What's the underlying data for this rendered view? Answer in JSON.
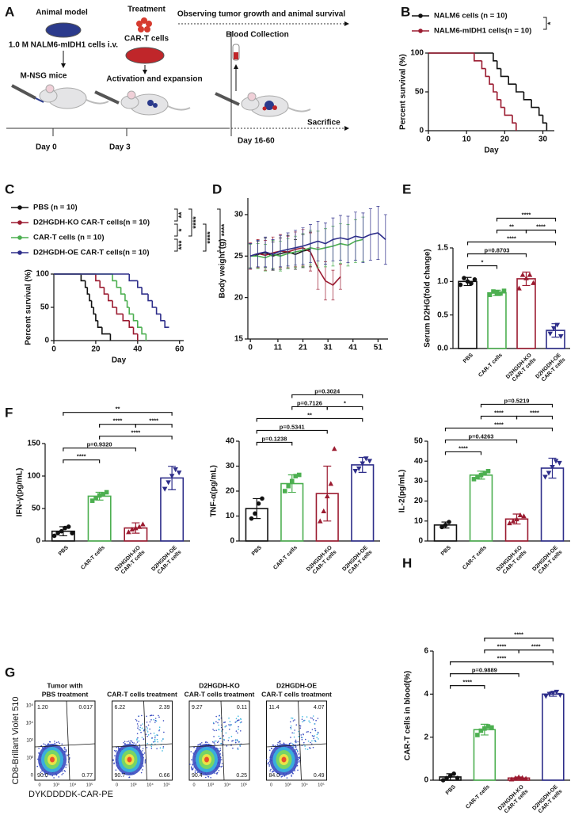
{
  "panel_labels": [
    "A",
    "B",
    "C",
    "D",
    "E",
    "F",
    "G",
    "H"
  ],
  "schematic": {
    "animal_model": "Animal model",
    "cells": "1.0 M NALM6-mIDH1 cells i.v.",
    "mice": "M-NSG mice",
    "treatment": "Treatment",
    "car_t": "CAR-T cells",
    "activation": "Activation and expansion",
    "observing": "Observing tumor growth and animal survival",
    "blood": "Blood Collection",
    "sacrifice": "Sacrifice",
    "days": [
      "Day 0",
      "Day 3",
      "Day 16-60"
    ]
  },
  "chart_data": [
    {
      "type": "step",
      "ylabel": "Percent survival (%)",
      "xlabel": "Day",
      "xlim": [
        0,
        33
      ],
      "xticks": [
        0,
        10,
        20,
        30
      ],
      "ylim": [
        0,
        100
      ],
      "yticks": [
        0,
        50,
        100
      ],
      "series": [
        {
          "name": "NALM6 cells (n = 10)",
          "color": "#111111",
          "x": [
            0,
            17,
            18,
            19,
            21,
            23,
            25,
            27,
            29,
            30,
            31
          ],
          "values": [
            100,
            90,
            80,
            70,
            60,
            50,
            40,
            30,
            20,
            10,
            0
          ]
        },
        {
          "name": "NALM6-mIDH1 cells(n = 10)",
          "color": "#9b1b30",
          "x": [
            0,
            12,
            14,
            15,
            16,
            17,
            18,
            19,
            20,
            22,
            23
          ],
          "values": [
            100,
            90,
            80,
            70,
            60,
            50,
            40,
            30,
            20,
            10,
            0
          ]
        }
      ],
      "comparisons": [
        {
          "pair": [
            0,
            1
          ],
          "label": "*"
        }
      ]
    },
    {
      "type": "step",
      "ylabel": "Percent survival (%)",
      "xlabel": "Day",
      "xlim": [
        0,
        62
      ],
      "xticks": [
        0,
        20,
        40,
        60
      ],
      "ylim": [
        0,
        100
      ],
      "yticks": [
        0,
        50,
        100
      ],
      "series": [
        {
          "name": "PBS (n = 10)",
          "color": "#111111",
          "x": [
            0,
            13,
            15,
            16,
            17,
            18,
            19,
            20,
            21,
            23,
            27
          ],
          "values": [
            100,
            90,
            80,
            70,
            60,
            50,
            40,
            30,
            20,
            10,
            0
          ]
        },
        {
          "name": "D2HGDH-KO CAR-T cells(n = 10)",
          "color": "#9b1b30",
          "x": [
            0,
            20,
            22,
            24,
            26,
            28,
            30,
            33,
            36,
            38,
            40
          ],
          "values": [
            100,
            90,
            80,
            70,
            60,
            50,
            40,
            30,
            20,
            10,
            0
          ]
        },
        {
          "name": "CAR-T cells (n = 10)",
          "color": "#4caf50",
          "x": [
            0,
            28,
            30,
            32,
            34,
            35,
            36,
            38,
            40,
            42,
            44
          ],
          "values": [
            100,
            90,
            80,
            70,
            60,
            50,
            40,
            30,
            20,
            10,
            0
          ]
        },
        {
          "name": "D2HGDH-OE CAR-T cells(n = 10)",
          "color": "#2e2e8a",
          "x": [
            0,
            36,
            40,
            42,
            45,
            47,
            49,
            51,
            53,
            55
          ],
          "values": [
            100,
            90,
            80,
            70,
            60,
            50,
            40,
            30,
            20,
            20
          ]
        }
      ],
      "comparisons": [
        {
          "pair": [
            0,
            1
          ],
          "label": "**"
        },
        {
          "pair": [
            1,
            2
          ],
          "label": "*"
        },
        {
          "pair": [
            2,
            3
          ],
          "label": "***"
        },
        {
          "pair": [
            0,
            2
          ],
          "label": "****"
        },
        {
          "pair": [
            1,
            3
          ],
          "label": "****"
        },
        {
          "pair": [
            0,
            3
          ],
          "label": "****"
        }
      ]
    },
    {
      "type": "line",
      "ylabel": "Body weight (g)",
      "x": [
        0,
        3,
        6,
        9,
        12,
        15,
        18,
        21,
        24,
        27,
        30,
        33,
        36,
        39,
        42,
        45,
        48,
        51,
        54
      ],
      "xlim": [
        -1,
        55
      ],
      "xticks": [
        0,
        11,
        21,
        31,
        41,
        51
      ],
      "ylim": [
        15,
        32
      ],
      "yticks": [
        15,
        20,
        25,
        30
      ],
      "series": [
        {
          "name": "PBS",
          "color": "#111111",
          "values": [
            25,
            25.2,
            25.4,
            25,
            25.3,
            25.5,
            25.2,
            25.6,
            25.8,
            null,
            null,
            null,
            null,
            null,
            null,
            null,
            null,
            null,
            null
          ],
          "errors": [
            1.5,
            1.6,
            1.8,
            1.7,
            1.9,
            2,
            1.8,
            2,
            2.1,
            null,
            null,
            null,
            null,
            null,
            null,
            null,
            null,
            null,
            null
          ]
        },
        {
          "name": "D2HGDH-KO CAR-T cells",
          "color": "#9b1b30",
          "values": [
            25,
            25.3,
            25.1,
            25.4,
            25.6,
            25.5,
            25.8,
            26,
            25.5,
            23.5,
            22,
            21.5,
            22.5,
            null,
            null,
            null,
            null,
            null,
            null
          ],
          "errors": [
            1.6,
            1.7,
            1.8,
            1.9,
            2,
            1.9,
            2.1,
            2.2,
            2.3,
            2.5,
            2.3,
            1.8,
            1.5,
            null,
            null,
            null,
            null,
            null,
            null
          ]
        },
        {
          "name": "CAR-T cells",
          "color": "#4caf50",
          "values": [
            25,
            25,
            24.8,
            25.2,
            25,
            25.3,
            25.5,
            25.7,
            26,
            25.8,
            26,
            26.2,
            26.5,
            26.3,
            26.8,
            27,
            null,
            null,
            null
          ],
          "errors": [
            1.4,
            1.5,
            1.6,
            1.7,
            1.8,
            1.8,
            1.9,
            2,
            2.1,
            2.2,
            2.3,
            2.4,
            2.4,
            2.5,
            2.6,
            2.7,
            null,
            null,
            null
          ]
        },
        {
          "name": "D2HGDH-OE CAR-T cells",
          "color": "#2e2e8a",
          "values": [
            25,
            25.3,
            25.5,
            25.2,
            25.6,
            25.8,
            26,
            26.2,
            26.5,
            26.8,
            26.5,
            27,
            27.2,
            27,
            27.4,
            27.2,
            27.6,
            27.8,
            27
          ],
          "errors": [
            1.5,
            1.6,
            1.8,
            1.8,
            1.9,
            2,
            2.1,
            2.2,
            2.3,
            2.4,
            2.5,
            2.6,
            2.7,
            2.8,
            2.9,
            3,
            3.1,
            3.2,
            3
          ]
        }
      ]
    },
    {
      "type": "bar",
      "ylabel": "Serum D2HG(fold change)",
      "categories": [
        "PBS",
        "CAR-T cells",
        "D2HGDH-KO CAR-T cells",
        "D2HGDH-OE CAR-T cells"
      ],
      "values": [
        1.0,
        0.83,
        1.04,
        0.27
      ],
      "errors": [
        0.06,
        0.04,
        0.1,
        0.1
      ],
      "points": [
        [
          0.95,
          1.05,
          1.0,
          0.97,
          1.03
        ],
        [
          0.8,
          0.85,
          0.83,
          0.82,
          0.86
        ],
        [
          0.9,
          1.1,
          1.05,
          1.1,
          0.98
        ],
        [
          0.22,
          0.3,
          0.35,
          0.18
        ]
      ],
      "colors": [
        "#111111",
        "#4caf50",
        "#9b1b30",
        "#2e2e8a"
      ],
      "markers": [
        "circle",
        "square",
        "triangle",
        "triangle-down"
      ],
      "ylim": [
        0,
        1.5
      ],
      "yticks": [
        {
          "value": 0,
          "label": "0.0"
        },
        0.5,
        {
          "value": 1,
          "label": "1.0"
        },
        1.5
      ],
      "comparisons": [
        {
          "pair": [
            0,
            1
          ],
          "label": "*"
        },
        {
          "pair": [
            0,
            2
          ],
          "label": "p=0.8703"
        },
        {
          "pair": [
            0,
            3
          ],
          "label": "****"
        },
        {
          "pair": [
            1,
            2
          ],
          "label": "**"
        },
        {
          "pair": [
            2,
            3
          ],
          "label": "****"
        },
        {
          "pair": [
            1,
            3
          ],
          "label": "****"
        }
      ]
    },
    {
      "type": "bar",
      "ylabel": "IFN-γ(pg/mL)",
      "categories": [
        "PBS",
        "CAR-T cells",
        "D2HGDH-KO CAR-T cells",
        "D2HGDH-OE CAR-T cells"
      ],
      "values": [
        15,
        69,
        20,
        97
      ],
      "errors": [
        7,
        6,
        8,
        18
      ],
      "points": [
        [
          8,
          12,
          15,
          20,
          22,
          12
        ],
        [
          62,
          66,
          70,
          72,
          75
        ],
        [
          14,
          18,
          20,
          22,
          26
        ],
        [
          80,
          90,
          100,
          110,
          105
        ]
      ],
      "colors": [
        "#111111",
        "#4caf50",
        "#9b1b30",
        "#2e2e8a"
      ],
      "markers": [
        "circle",
        "square",
        "triangle",
        "triangle-down"
      ],
      "ylim": [
        0,
        150
      ],
      "yticks": [
        0,
        50,
        100,
        150
      ],
      "comparisons": [
        {
          "pair": [
            0,
            1
          ],
          "label": "****"
        },
        {
          "pair": [
            0,
            2
          ],
          "label": "p=0.9320"
        },
        {
          "pair": [
            1,
            3
          ],
          "label": "****"
        },
        {
          "pair": [
            1,
            2
          ],
          "label": "****"
        },
        {
          "pair": [
            2,
            3
          ],
          "label": "****"
        },
        {
          "pair": [
            0,
            3
          ],
          "label": "**"
        }
      ]
    },
    {
      "type": "bar",
      "ylabel": "TNF-α(pg/mL)",
      "categories": [
        "PBS",
        "CAR-T cells",
        "D2HGDH-KO CAR-T cells",
        "D2HGDH-OE CAR-T cells"
      ],
      "values": [
        13,
        23,
        19,
        30.5
      ],
      "errors": [
        4,
        3.5,
        11,
        3
      ],
      "points": [
        [
          9,
          11,
          15,
          17
        ],
        [
          20,
          22,
          24,
          26,
          26.5
        ],
        [
          8,
          12,
          18,
          23,
          37
        ],
        [
          28,
          29,
          31,
          33,
          32
        ]
      ],
      "colors": [
        "#111111",
        "#4caf50",
        "#9b1b30",
        "#2e2e8a"
      ],
      "markers": [
        "circle",
        "square",
        "triangle",
        "triangle-down"
      ],
      "ylim": [
        0,
        40
      ],
      "yticks": [
        0,
        10,
        20,
        30,
        40
      ],
      "comparisons": [
        {
          "pair": [
            0,
            1
          ],
          "label": "p=0.1238"
        },
        {
          "pair": [
            0,
            2
          ],
          "label": "p=0.5341"
        },
        {
          "pair": [
            0,
            3
          ],
          "label": "**"
        },
        {
          "pair": [
            1,
            2
          ],
          "label": "p=0.7126"
        },
        {
          "pair": [
            2,
            3
          ],
          "label": "*"
        },
        {
          "pair": [
            1,
            3
          ],
          "label": "p=0.3024"
        }
      ]
    },
    {
      "type": "bar",
      "ylabel": "IL-2(pg/mL)",
      "categories": [
        "PBS",
        "CAR-T cells",
        "D2HGDH-KO CAR-T cells",
        "D2HGDH-OE CAR-T cells"
      ],
      "values": [
        8,
        33,
        11,
        36.5
      ],
      "errors": [
        1.5,
        2,
        2.5,
        5
      ],
      "points": [
        [
          7,
          8,
          9.5
        ],
        [
          31,
          32,
          33,
          34,
          35
        ],
        [
          9,
          10,
          11,
          13,
          12.5
        ],
        [
          32,
          34,
          37,
          40,
          39
        ]
      ],
      "colors": [
        "#111111",
        "#4caf50",
        "#9b1b30",
        "#2e2e8a"
      ],
      "markers": [
        "circle",
        "square",
        "triangle",
        "triangle-down"
      ],
      "ylim": [
        0,
        50
      ],
      "yticks": [
        0,
        10,
        20,
        30,
        40,
        50
      ],
      "comparisons": [
        {
          "pair": [
            0,
            1
          ],
          "label": "****"
        },
        {
          "pair": [
            0,
            2
          ],
          "label": "p=0.4263"
        },
        {
          "pair": [
            0,
            3
          ],
          "label": "****"
        },
        {
          "pair": [
            1,
            2
          ],
          "label": "****"
        },
        {
          "pair": [
            2,
            3
          ],
          "label": "****"
        },
        {
          "pair": [
            1,
            3
          ],
          "label": "p=0.5219"
        }
      ]
    },
    {
      "type": "bar",
      "ylabel": "CAR-T cells in blood(%)",
      "categories": [
        "PBS",
        "CAR-T cells",
        "D2HGDH-KO CAR-T cells",
        "D2HGDH-OE CAR-T cells"
      ],
      "values": [
        0.15,
        2.35,
        0.1,
        4.0
      ],
      "errors": [
        0.15,
        0.25,
        0.05,
        0.1
      ],
      "points": [
        [
          0,
          0.1,
          0.2,
          0.3,
          0.1
        ],
        [
          2.1,
          2.3,
          2.4,
          2.5,
          2.45
        ],
        [
          0.05,
          0.1,
          0.15,
          0.12,
          0.08
        ],
        [
          3.9,
          4.0,
          4.05,
          4.1,
          3.95
        ]
      ],
      "colors": [
        "#111111",
        "#4caf50",
        "#9b1b30",
        "#2e2e8a"
      ],
      "markers": [
        "circle",
        "square",
        "triangle",
        "triangle-down"
      ],
      "ylim": [
        0,
        6
      ],
      "yticks": [
        0,
        2,
        4,
        6
      ],
      "comparisons": [
        {
          "pair": [
            0,
            1
          ],
          "label": "****"
        },
        {
          "pair": [
            0,
            2
          ],
          "label": "p=0.9889"
        },
        {
          "pair": [
            0,
            3
          ],
          "label": "****"
        },
        {
          "pair": [
            1,
            2
          ],
          "label": "****"
        },
        {
          "pair": [
            2,
            3
          ],
          "label": "****"
        },
        {
          "pair": [
            1,
            3
          ],
          "label": "****"
        }
      ]
    }
  ],
  "flow": {
    "ylabel": "CD8-Brillant Violet 510",
    "xlabel": "DYKDDDDK-CAR-PE",
    "yticks": [
      "10⁵",
      "10⁴",
      "10³",
      "10²",
      "0"
    ],
    "xticks": [
      "0",
      "10³",
      "10⁴",
      "10⁵"
    ],
    "panels": [
      {
        "title": [
          "Tumor with",
          "PBS treatment"
        ],
        "quadrants": [
          "1.20",
          "0.017",
          "90.0",
          "0.77"
        ]
      },
      {
        "title": [
          "CAR-T cells treatment"
        ],
        "quadrants": [
          "6.22",
          "2.39",
          "90.7",
          "0.66"
        ]
      },
      {
        "title": [
          "D2HGDH-KO",
          "CAR-T cells treatment"
        ],
        "quadrants": [
          "9.27",
          "0.11",
          "90.4",
          "0.25"
        ]
      },
      {
        "title": [
          "D2HGDH-OE",
          "CAR-T cells treatment"
        ],
        "quadrants": [
          "11.4",
          "4.07",
          "84.0",
          "0.49"
        ]
      }
    ]
  }
}
